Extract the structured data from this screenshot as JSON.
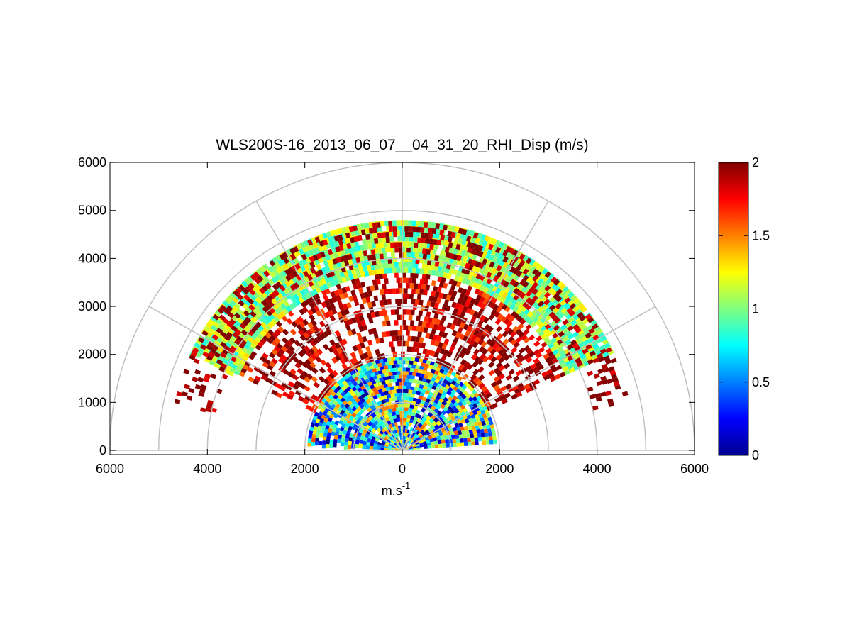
{
  "chart_data": {
    "type": "heatmap",
    "subtype": "polar-rhi-scan",
    "title": "WLS200S-16_2013_06_07__04_31_20_RHI_Disp (m/s)",
    "xlabel": "m.s",
    "xlabel_superscript": "-1",
    "ylabel": "",
    "x_ticks": [
      "6000",
      "4000",
      "2000",
      "0",
      "2000",
      "4000",
      "6000"
    ],
    "y_ticks": [
      "0",
      "1000",
      "2000",
      "3000",
      "4000",
      "5000",
      "6000"
    ],
    "xlim": [
      -6000,
      6000
    ],
    "ylim": [
      0,
      6000
    ],
    "range_rings": [
      1000,
      2000,
      3000,
      4000,
      5000,
      6000
    ],
    "radial_spokes_deg": [
      0,
      30,
      60,
      90,
      120,
      150,
      180
    ],
    "grid": true,
    "colorbar": {
      "min": 0,
      "max": 2,
      "ticks": [
        "0",
        "0.5",
        "1",
        "1.5",
        "2"
      ],
      "colormap": "jet",
      "placement": "right"
    },
    "data_regions": [
      {
        "name": "near-field noisy",
        "r_min": 0,
        "r_max": 1950,
        "elev_min_deg": 4,
        "elev_max_deg": 176,
        "dominant_value": 0.8,
        "spread": 0.45
      },
      {
        "name": "mid band saturated",
        "r_min": 1950,
        "r_max": 3700,
        "elev_min_deg": 25,
        "elev_max_deg": 155,
        "dominant_value": 1.9,
        "spread": 0.2,
        "fill_fraction": 0.6
      },
      {
        "name": "upper band",
        "r_min": 3700,
        "r_max": 4800,
        "elev_min_deg": 25,
        "elev_max_deg": 155,
        "dominant_value": 1.05,
        "spread": 0.15
      },
      {
        "name": "upper band edge",
        "r_min": 3900,
        "r_max": 4700,
        "elev_min_deg": 12,
        "elev_max_deg": 168,
        "dominant_value": 1.95,
        "spread": 0.1,
        "fill_fraction": 0.35
      }
    ]
  },
  "colors": {
    "grid": "#c0c0c0",
    "axes": "#000000",
    "background": "#ffffff"
  }
}
